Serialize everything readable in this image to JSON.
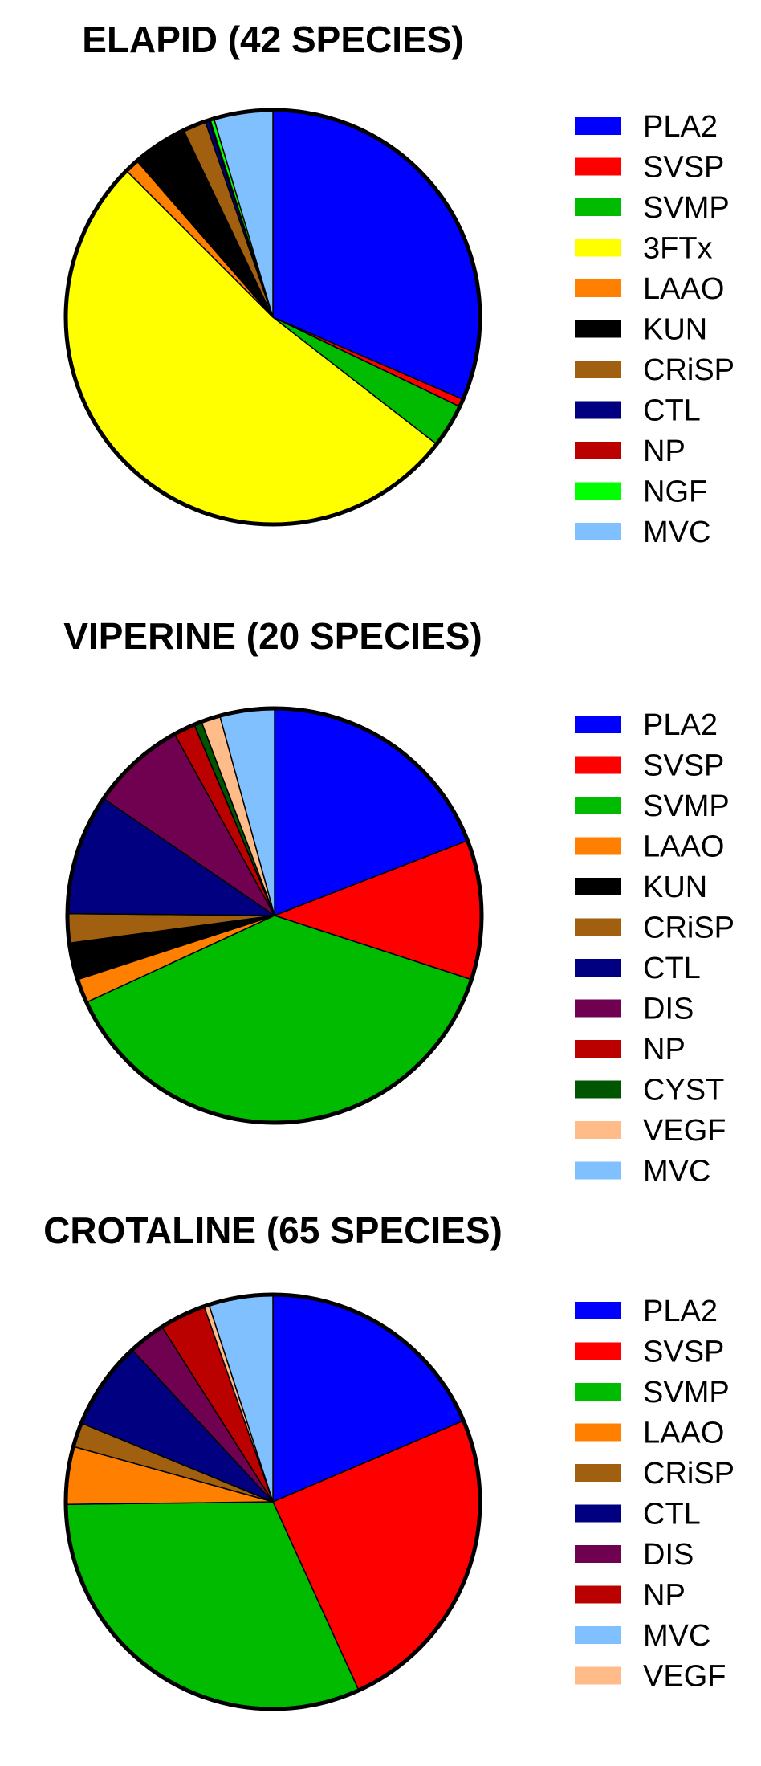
{
  "chart_data": [
    {
      "type": "pie",
      "title": "ELAPID (42 SPECIES)",
      "slices": [
        {
          "label": "PLA2",
          "value": 31.5,
          "color": "#0000ff"
        },
        {
          "label": "SVSP",
          "value": 0.6,
          "color": "#ff0000"
        },
        {
          "label": "SVMP",
          "value": 3.4,
          "color": "#00bb00"
        },
        {
          "label": "3FTx",
          "value": 52.0,
          "color": "#ffff00"
        },
        {
          "label": "LAAO",
          "value": 1.1,
          "color": "#ff8000"
        },
        {
          "label": "KUN",
          "value": 4.3,
          "color": "#000000"
        },
        {
          "label": "CRiSP",
          "value": 1.8,
          "color": "#a0600f"
        },
        {
          "label": "CTL",
          "value": 0.3,
          "color": "#000080"
        },
        {
          "label": "NP",
          "value": 0.1,
          "color": "#bb0000"
        },
        {
          "label": "NGF",
          "value": 0.3,
          "color": "#00ff00"
        },
        {
          "label": "MVC",
          "value": 4.6,
          "color": "#80c0ff"
        }
      ],
      "legend": [
        "PLA2",
        "SVSP",
        "SVMP",
        "3FTx",
        "LAAO",
        "KUN",
        "CRiSP",
        "CTL",
        "NP",
        "NGF",
        "MVC"
      ]
    },
    {
      "type": "pie",
      "title": "VIPERINE (20 SPECIES)",
      "slices": [
        {
          "label": "PLA2",
          "value": 19.3,
          "color": "#0000ff"
        },
        {
          "label": "SVSP",
          "value": 11.0,
          "color": "#ff0000"
        },
        {
          "label": "SVMP",
          "value": 38.5,
          "color": "#00bb00"
        },
        {
          "label": "LAAO",
          "value": 1.9,
          "color": "#ff8000"
        },
        {
          "label": "KUN",
          "value": 2.9,
          "color": "#000000"
        },
        {
          "label": "CRiSP",
          "value": 2.3,
          "color": "#a0600f"
        },
        {
          "label": "CTL",
          "value": 9.5,
          "color": "#000080"
        },
        {
          "label": "DIS",
          "value": 7.5,
          "color": "#700050"
        },
        {
          "label": "NP",
          "value": 1.7,
          "color": "#bb0000"
        },
        {
          "label": "CYST",
          "value": 0.6,
          "color": "#005500"
        },
        {
          "label": "VEGF",
          "value": 1.5,
          "color": "#ffbb88"
        },
        {
          "label": "MVC",
          "value": 4.3,
          "color": "#80c0ff"
        }
      ],
      "legend": [
        "PLA2",
        "SVSP",
        "SVMP",
        "LAAO",
        "KUN",
        "CRiSP",
        "CTL",
        "DIS",
        "NP",
        "CYST",
        "VEGF",
        "MVC"
      ]
    },
    {
      "type": "pie",
      "title": "CROTALINE (65 SPECIES)",
      "slices": [
        {
          "label": "PLA2",
          "value": 18.6,
          "color": "#0000ff"
        },
        {
          "label": "SVSP",
          "value": 24.6,
          "color": "#ff0000"
        },
        {
          "label": "SVMP",
          "value": 31.6,
          "color": "#00bb00"
        },
        {
          "label": "LAAO",
          "value": 4.5,
          "color": "#ff8000"
        },
        {
          "label": "CRiSP",
          "value": 1.9,
          "color": "#a0600f"
        },
        {
          "label": "CTL",
          "value": 6.9,
          "color": "#000080"
        },
        {
          "label": "DIS",
          "value": 2.9,
          "color": "#700050"
        },
        {
          "label": "NP",
          "value": 3.6,
          "color": "#bb0000"
        },
        {
          "label": "VEGF",
          "value": 0.4,
          "color": "#ffbb88"
        },
        {
          "label": "MVC",
          "value": 5.0,
          "color": "#80c0ff"
        }
      ],
      "legend": [
        "PLA2",
        "SVSP",
        "SVMP",
        "LAAO",
        "CRiSP",
        "CTL",
        "DIS",
        "NP",
        "MVC",
        "VEGF"
      ]
    }
  ]
}
